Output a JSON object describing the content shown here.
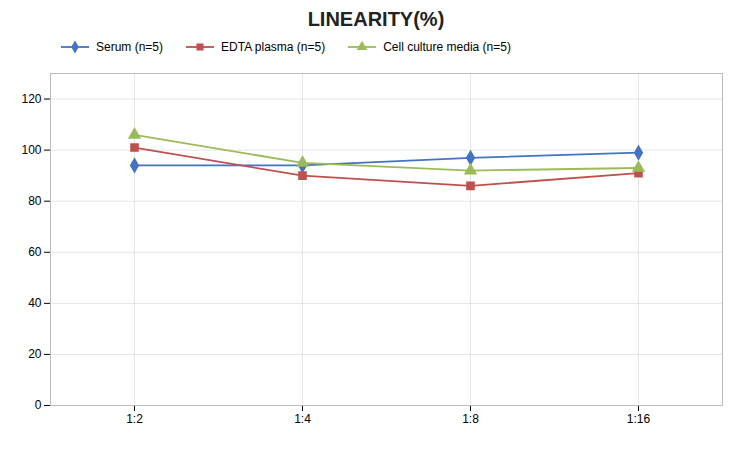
{
  "chart_data": {
    "type": "line",
    "title": "LINEARITY(%)",
    "categories": [
      "1:2",
      "1:4",
      "1:8",
      "1:16"
    ],
    "series": [
      {
        "name": "Serum (n=5)",
        "color": "#4472C4",
        "marker": "diamond",
        "values": [
          94,
          94,
          97,
          99
        ]
      },
      {
        "name": "EDTA plasma (n=5)",
        "color": "#C0504D",
        "marker": "square",
        "values": [
          101,
          90,
          86,
          91
        ]
      },
      {
        "name": "Cell culture media (n=5)",
        "color": "#9BBB59",
        "marker": "triangle",
        "values": [
          106,
          95,
          92,
          93
        ]
      }
    ],
    "ylim": [
      0,
      130
    ],
    "yticks": [
      0,
      20,
      40,
      60,
      80,
      100,
      120
    ],
    "grid": true,
    "legend": "top"
  }
}
